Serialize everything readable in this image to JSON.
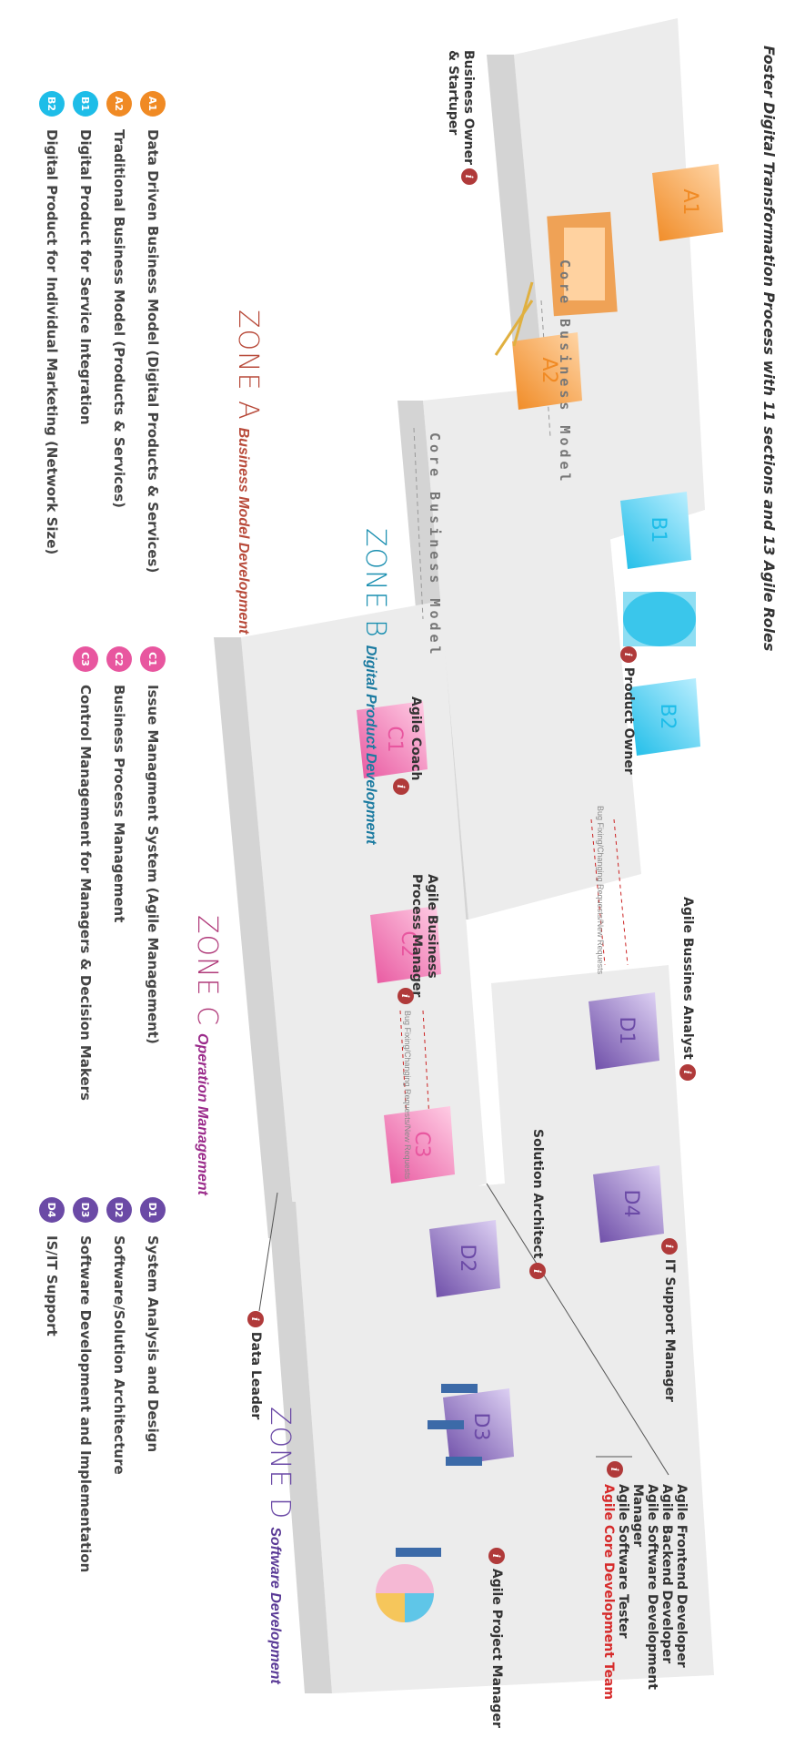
{
  "title": "Foster Digital Transformation Process with 11 sections  and 13 Agile Roles",
  "colors": {
    "zone_a": "#f08a24",
    "zone_b": "#1ebde8",
    "zone_c": "#e8569f",
    "zone_d": "#6b4aa6",
    "info": "#b03a3a",
    "accent_red": "#d62b2b",
    "platform": "#e6e6e6"
  },
  "zones": [
    {
      "id": "A",
      "word": "ZONE A",
      "name": "Business Model Development",
      "word_color": "#b84a3a",
      "name_color": "#b84a3a"
    },
    {
      "id": "B",
      "word": "ZONE B",
      "name": "Digital Product Development",
      "word_color": "#1a8fb0",
      "name_color": "#1a7aa0"
    },
    {
      "id": "C",
      "word": "ZONE C",
      "name": "Operation Management",
      "word_color": "#b03a7a",
      "name_color": "#9a2a8a"
    },
    {
      "id": "D",
      "word": "ZONE D",
      "name": "Software Development",
      "word_color": "#6b4aa6",
      "name_color": "#5a3a96"
    }
  ],
  "sections": {
    "A1": "A1",
    "A2": "A2",
    "B1": "B1",
    "B2": "B2",
    "C1": "C1",
    "C2": "C2",
    "C3": "C3",
    "D1": "D1",
    "D2": "D2",
    "D3": "D3",
    "D4": "D4"
  },
  "flows": {
    "core_a": "Core  Business  Model",
    "core_b": "Core  Business  Model",
    "bug_1": "Bug Fixing/Changing Requests/New Requests",
    "bug_2": "Bug Fixing/Changing Requests/New Requests"
  },
  "roles": {
    "business_owner": "Business Owner\n& Startuper",
    "product_owner": "Product Owner",
    "agile_coach": "Agile Coach",
    "agile_bpm": "Agile Business\nProcess Manager",
    "data_leader": "Data Leader",
    "business_analyst": "Agile Bussines Analyst",
    "it_support": "IT Support Manager",
    "solution_architect": "Solution Architect",
    "project_manager": "Agile Project Manager"
  },
  "info_glyph": "i",
  "core_team": {
    "members": [
      "Agile Frontend Developer",
      "Agile Backend Developer",
      "Agile Software Development Manager",
      "Agile Software Tester"
    ],
    "team_label": "Agile Core Development Team"
  },
  "legend": [
    {
      "code": "A1",
      "text": "Data Driven Business Model (Digital Products & Services)",
      "color": "#f08a24"
    },
    {
      "code": "A2",
      "text": "Traditional Business Model (Products & Services)",
      "color": "#f08a24"
    },
    {
      "code": "B1",
      "text": "Digital Product for Service Integration",
      "color": "#1ebde8"
    },
    {
      "code": "B2",
      "text": "Digital Product for Individual Marketing (Network Size)",
      "color": "#1ebde8"
    },
    {
      "code": "C1",
      "text": "Issue Managment System (Agile Management)",
      "color": "#e8569f"
    },
    {
      "code": "C2",
      "text": "Business Process Management",
      "color": "#e8569f"
    },
    {
      "code": "C3",
      "text": "Control Management for Managers & Decision Makers",
      "color": "#e8569f"
    },
    {
      "code": "D1",
      "text": "System Analysis and Design",
      "color": "#6b4aa6"
    },
    {
      "code": "D2",
      "text": "Software/Solution Architecture",
      "color": "#6b4aa6"
    },
    {
      "code": "D3",
      "text": "Software Development and Implementation",
      "color": "#6b4aa6"
    },
    {
      "code": "D4",
      "text": "IS/IT Support",
      "color": "#6b4aa6"
    }
  ]
}
